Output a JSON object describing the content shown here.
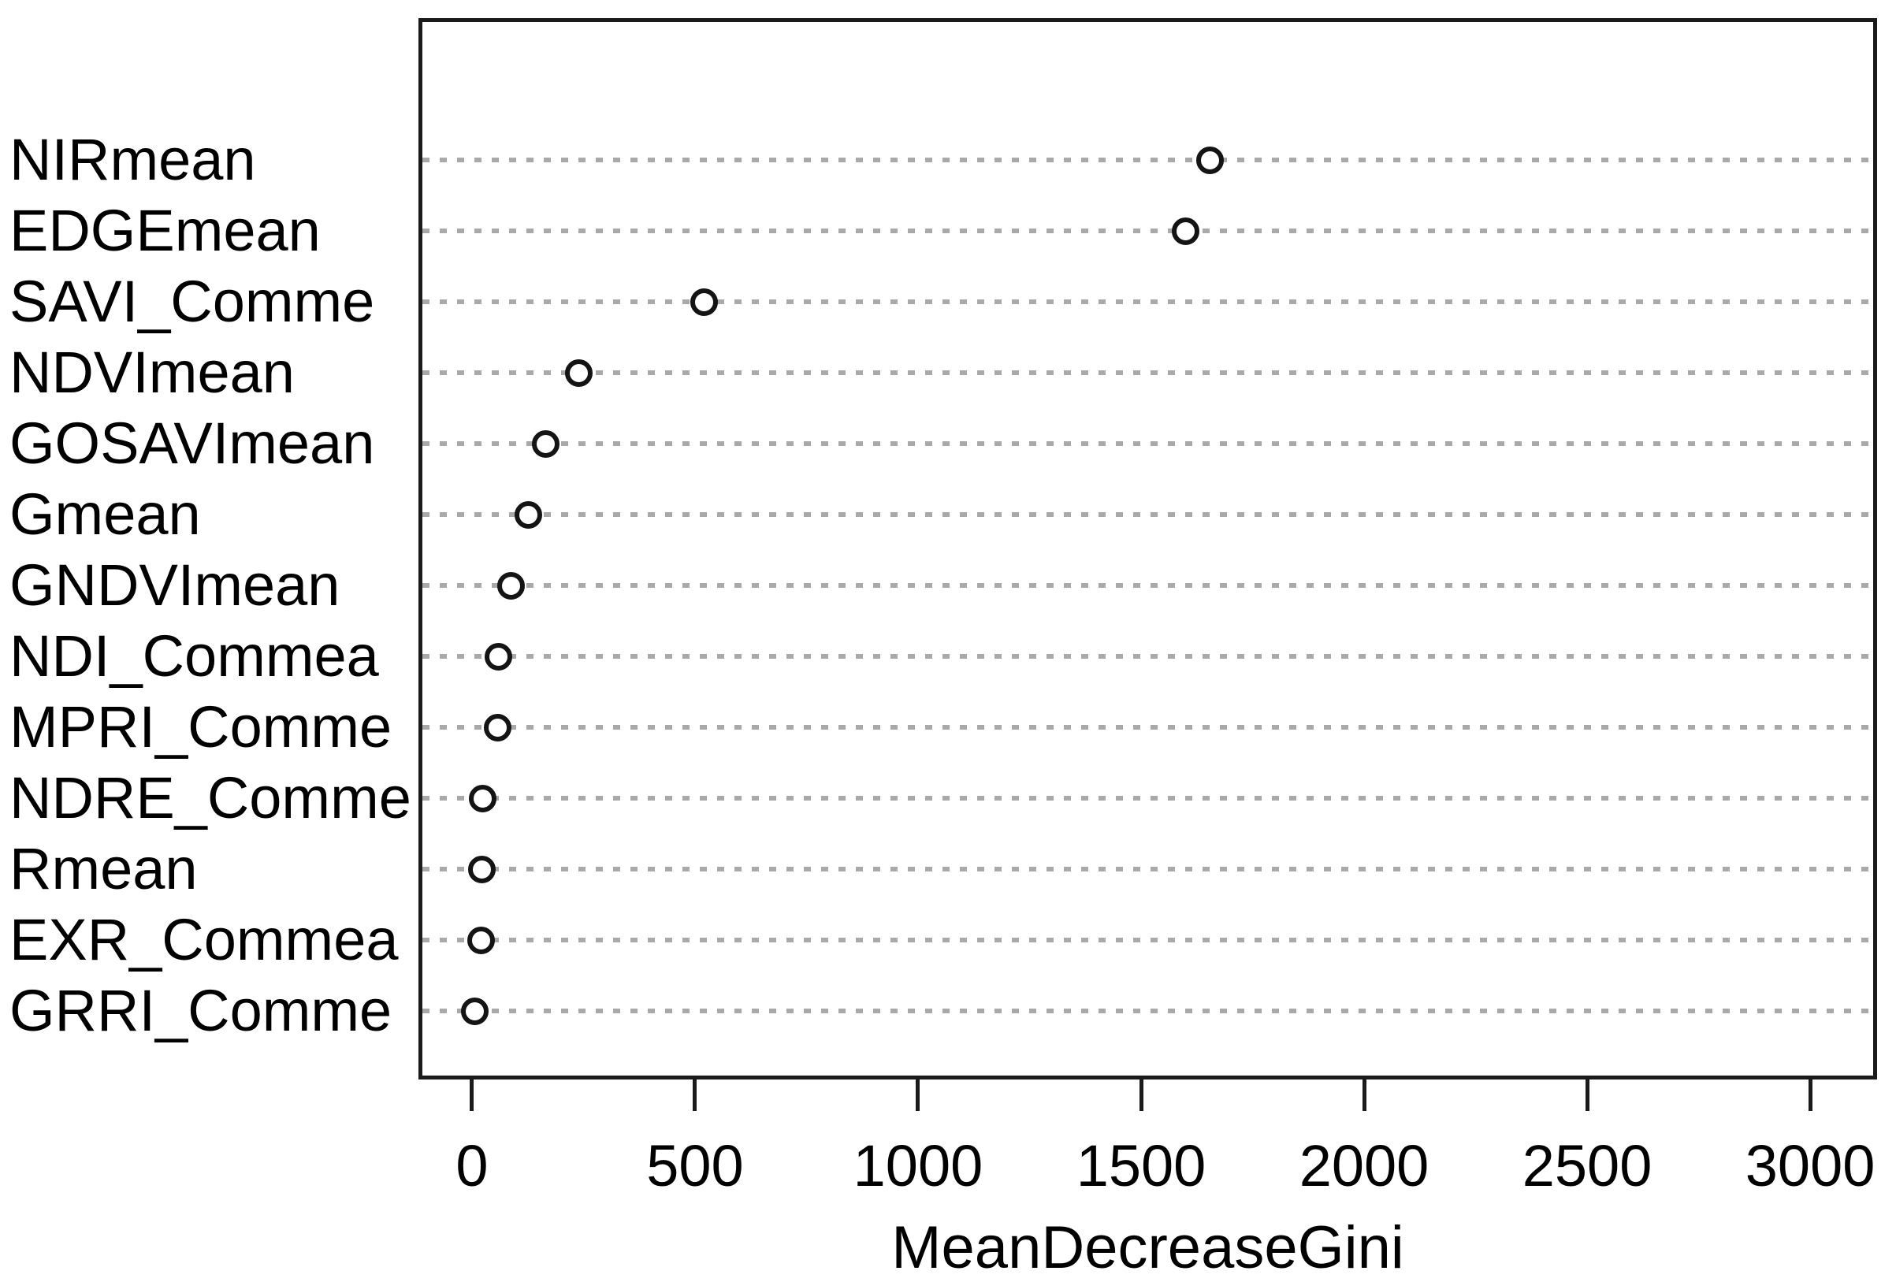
{
  "chart_data": {
    "type": "scatter",
    "subtype": "dotchart-variable-importance",
    "title": "",
    "xlabel": "MeanDecreaseGini",
    "ylabel": "",
    "categories": [
      "NIRmean",
      "EDGEmean",
      "SAVI_Comme",
      "NDVImean",
      "GOSAVImean",
      "Gmean",
      "GNDVImean",
      "NDI_Commea",
      "MPRI_Comme",
      "NDRE_Comme",
      "Rmean",
      "EXR_Commea",
      "GRRI_Comme"
    ],
    "values": [
      1655,
      1600,
      520,
      240,
      165,
      127,
      88,
      60,
      58,
      24,
      23,
      21,
      6
    ],
    "xticks": [
      0,
      500,
      1000,
      1500,
      2000,
      2500,
      3000
    ],
    "xlim": [
      -120,
      3150
    ],
    "grid": "dotted-horizontal",
    "legend": "none",
    "marker": "open-circle",
    "colors": {
      "axis": "#1a1a1a",
      "grid": "#a9a9a9",
      "marker_stroke": "#141414",
      "text": "#000000",
      "background": "#ffffff"
    }
  }
}
